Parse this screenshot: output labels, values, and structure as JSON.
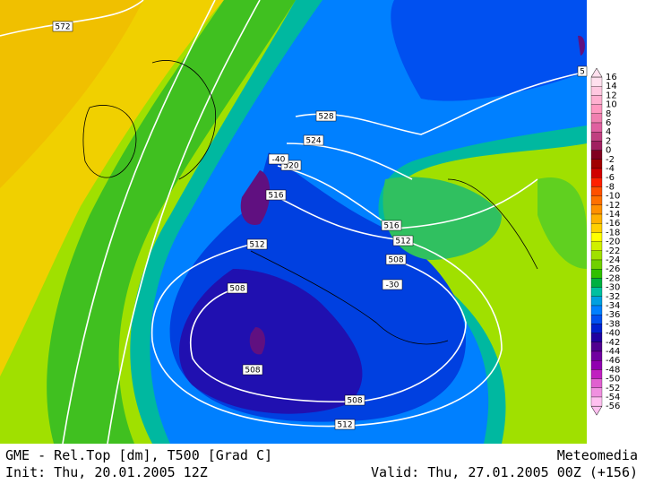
{
  "map": {
    "contour_labels": [
      "572",
      "528",
      "524",
      "520",
      "516",
      "512",
      "508",
      "516",
      "512",
      "508",
      "508",
      "508",
      "512",
      "-40",
      "-30",
      "5"
    ]
  },
  "colorbar": {
    "labels": [
      16,
      14,
      12,
      10,
      8,
      6,
      4,
      2,
      0,
      -2,
      -4,
      -6,
      -8,
      -10,
      -12,
      -14,
      -16,
      -18,
      -20,
      -22,
      -24,
      -26,
      -28,
      -30,
      -32,
      -34,
      -36,
      -38,
      -40,
      -42,
      -44,
      -46,
      -48,
      -50,
      -52,
      -54,
      -56
    ],
    "colors": [
      "#ffe0ee",
      "#ffc8e0",
      "#ffb0d0",
      "#ff98c0",
      "#f080b0",
      "#e060a0",
      "#c04080",
      "#a02060",
      "#800020",
      "#a00000",
      "#d00000",
      "#ff2000",
      "#ff5000",
      "#ff7000",
      "#ff9000",
      "#ffb000",
      "#ffd000",
      "#ffff00",
      "#d0f000",
      "#a0e000",
      "#70d000",
      "#30c000",
      "#00b040",
      "#00c0a0",
      "#00a0e0",
      "#0080ff",
      "#0050f0",
      "#0020d0",
      "#2000a0",
      "#500090",
      "#7000a0",
      "#9000b0",
      "#c020c0",
      "#e060d0",
      "#f090e0",
      "#ffc0f0"
    ]
  },
  "footer": {
    "title": "GME - Rel.Top [dm], T500 [Grad C]",
    "source": "Meteomedia",
    "init": "Init: Thu, 20.01.2005 12Z",
    "valid": "Valid: Thu, 27.01.2005 00Z (+156)"
  }
}
